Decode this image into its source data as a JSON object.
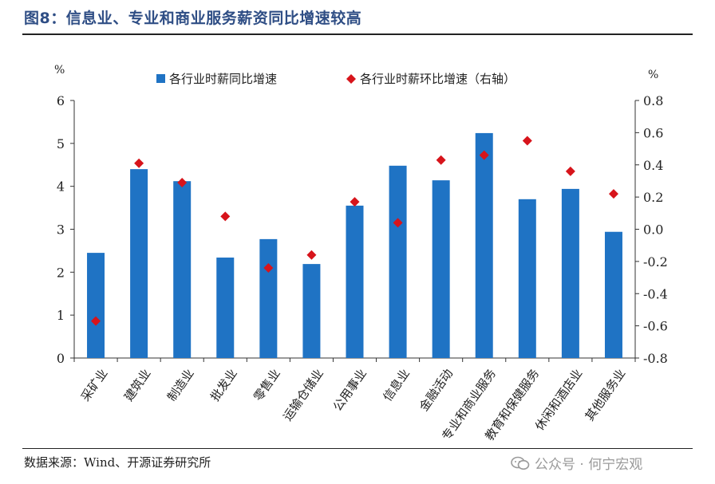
{
  "figure": {
    "title": "图8：信息业、专业和商业服务薪资同比增速较高",
    "source": "数据来源：Wind、开源证券研究所",
    "watermark": "公众号 · 何宁宏观"
  },
  "colors": {
    "bar": "#1f73c4",
    "marker": "#d7141b",
    "title": "#2f4e85"
  },
  "chart_data": {
    "type": "bar",
    "title": "",
    "xlabel": "",
    "ylabel": "%",
    "y2label": "%",
    "ylim": [
      0,
      6
    ],
    "y2lim": [
      -0.8,
      0.8
    ],
    "yticks": [
      "0",
      "1",
      "2",
      "3",
      "4",
      "5",
      "6"
    ],
    "y2ticks": [
      "-0.8",
      "-0.6",
      "-0.4",
      "-0.2",
      "0.0",
      "0.2",
      "0.4",
      "0.6",
      "0.8"
    ],
    "grid": false,
    "legend_position": "top",
    "categories": [
      "采矿业",
      "建筑业",
      "制造业",
      "批发业",
      "零售业",
      "运输仓储业",
      "公用事业",
      "信息业",
      "金融活动",
      "专业和商业服务",
      "教育和保健服务",
      "休闲和酒店业",
      "其他服务业"
    ],
    "series": [
      {
        "name": "各行业时薪同比增速",
        "type": "bar",
        "axis": "left",
        "values": [
          2.45,
          4.4,
          4.12,
          2.34,
          2.77,
          2.19,
          3.55,
          4.48,
          4.14,
          5.24,
          3.7,
          3.94,
          2.94
        ]
      },
      {
        "name": "各行业时薪环比增速（右轴）",
        "type": "scatter",
        "axis": "right",
        "values": [
          -0.57,
          0.41,
          0.29,
          0.08,
          -0.24,
          -0.16,
          0.17,
          0.04,
          0.43,
          0.46,
          0.55,
          0.36,
          0.22
        ]
      }
    ]
  }
}
